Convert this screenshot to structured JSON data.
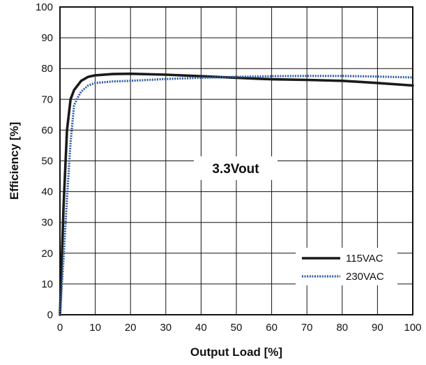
{
  "chart_data": {
    "type": "line",
    "xlabel": "Output Load [%]",
    "ylabel": "Efficiency [%]",
    "xlim": [
      0,
      100
    ],
    "ylim": [
      0,
      100
    ],
    "x_ticks": [
      "0",
      "10",
      "20",
      "30",
      "40",
      "50",
      "60",
      "70",
      "80",
      "90",
      "100"
    ],
    "y_ticks": [
      "0",
      "10",
      "20",
      "30",
      "40",
      "50",
      "60",
      "70",
      "80",
      "90",
      "100"
    ],
    "grid": true,
    "annotation": "3.3Vout",
    "legend_position": "bottom-right",
    "series": [
      {
        "name": "115VAC",
        "color": "#1a1a1a",
        "style": "solid",
        "x": [
          0,
          1,
          2,
          3,
          4,
          6,
          8,
          10,
          15,
          20,
          30,
          40,
          50,
          60,
          70,
          80,
          90,
          100
        ],
        "y": [
          0,
          35,
          60,
          70,
          73,
          76,
          77.3,
          77.8,
          78.2,
          78.3,
          78,
          77.5,
          77,
          76.5,
          76.3,
          76,
          75.3,
          74.5
        ]
      },
      {
        "name": "230VAC",
        "color": "#2e5fa3",
        "style": "dotted",
        "x": [
          0,
          1,
          2,
          3,
          4,
          5,
          6,
          8,
          10,
          15,
          20,
          30,
          40,
          50,
          60,
          70,
          80,
          90,
          100
        ],
        "y": [
          0,
          18,
          38,
          56,
          68,
          70.5,
          72.5,
          74.5,
          75.3,
          75.8,
          76,
          76.6,
          77,
          77.3,
          77.5,
          77.6,
          77.6,
          77.4,
          77.1
        ]
      }
    ]
  }
}
